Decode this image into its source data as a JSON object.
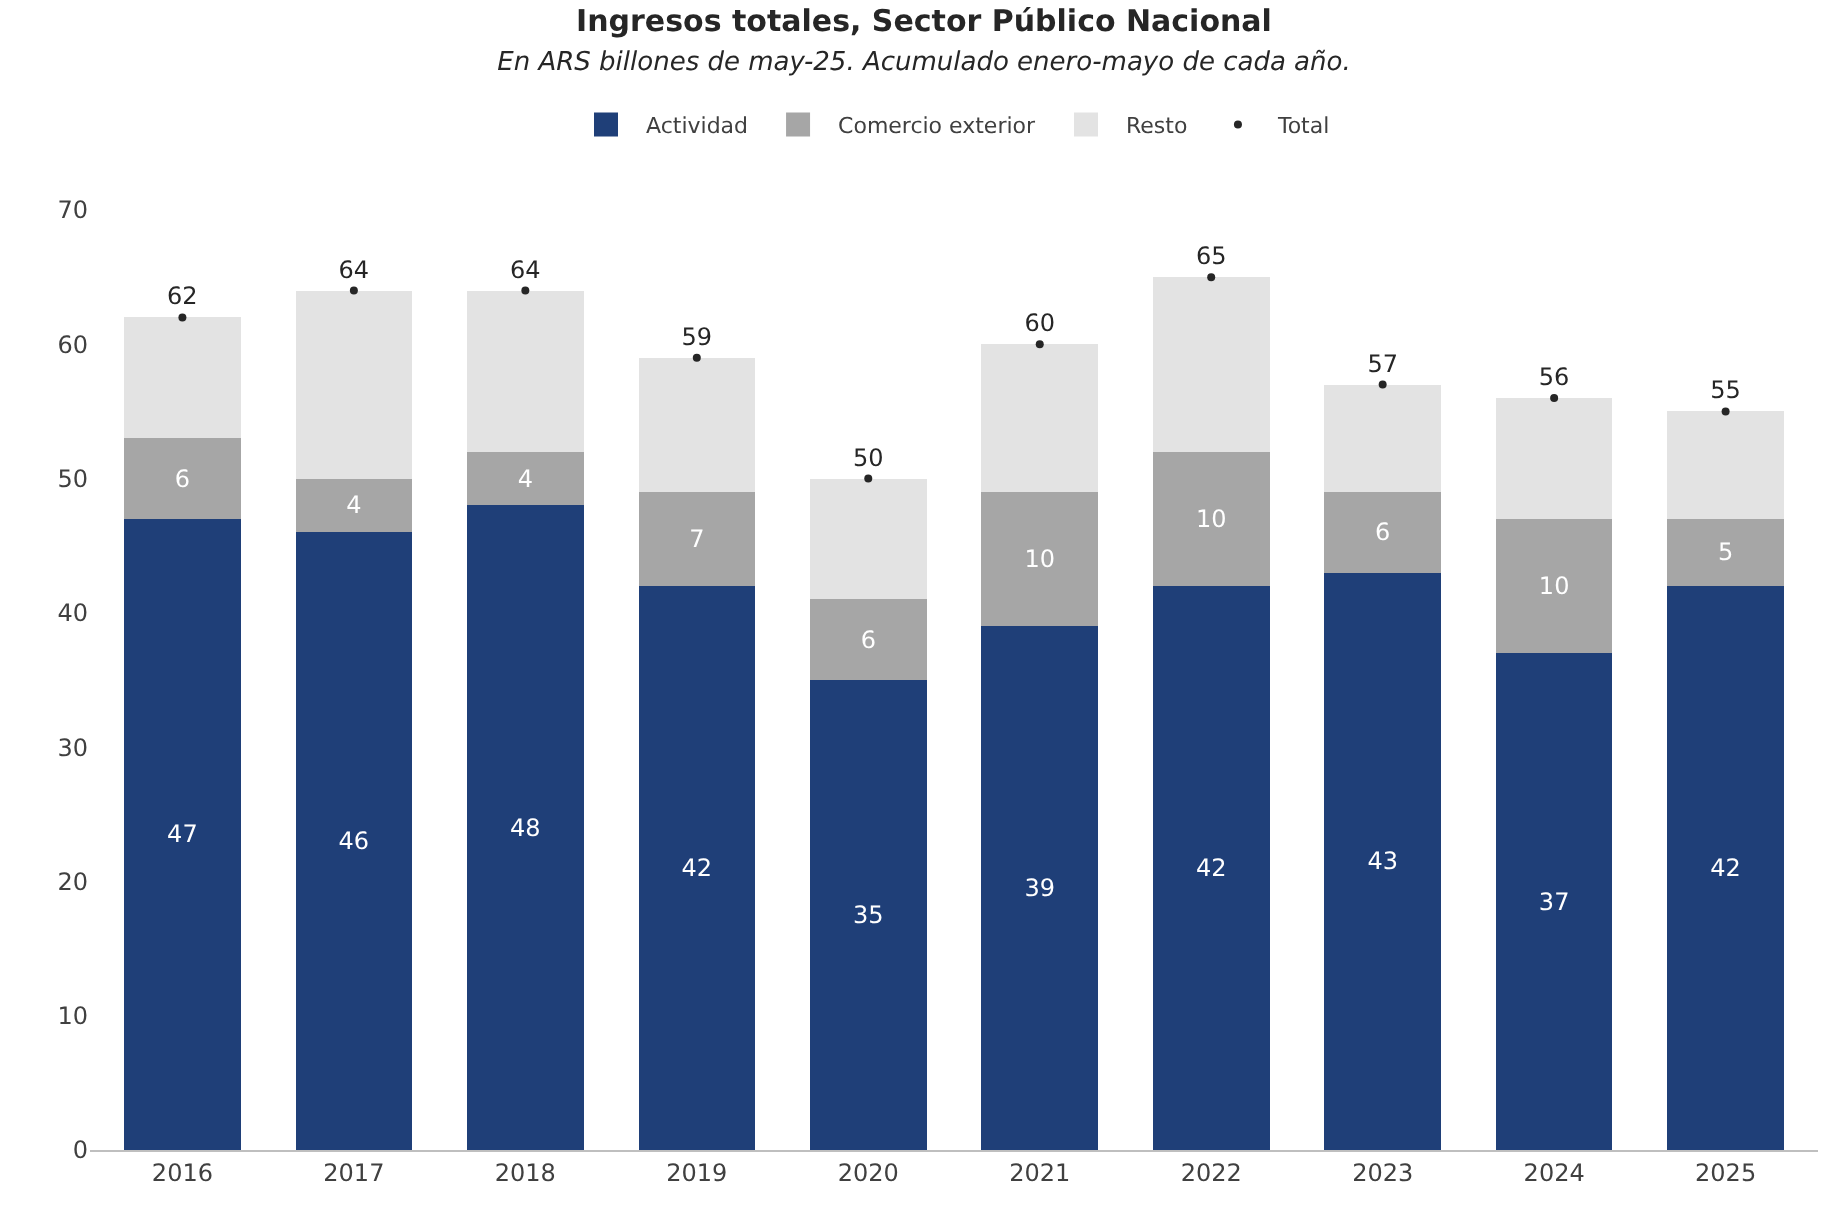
{
  "chart_data": {
    "type": "bar",
    "title": "Ingresos totales, Sector Público Nacional",
    "subtitle": "En ARS billones de may-25. Acumulado enero-mayo de cada año.",
    "categories": [
      "2016",
      "2017",
      "2018",
      "2019",
      "2020",
      "2021",
      "2022",
      "2023",
      "2024",
      "2025"
    ],
    "stacked": true,
    "ylim": [
      0,
      70
    ],
    "yticks": [
      0,
      10,
      20,
      30,
      40,
      50,
      60,
      70
    ],
    "grid": false,
    "legend": "top",
    "series": [
      {
        "name": "Actividad",
        "color": "#1f3f78",
        "values": [
          47,
          46,
          48,
          42,
          35,
          39,
          42,
          43,
          37,
          42
        ],
        "value_labels": [
          "47",
          "46",
          "48",
          "42",
          "35",
          "39",
          "42",
          "43",
          "37",
          "42"
        ]
      },
      {
        "name": "Comercio exterior",
        "color": "#a6a6a6",
        "values": [
          6,
          4,
          4,
          7,
          6,
          10,
          10,
          6,
          10,
          5
        ],
        "value_labels": [
          "6",
          "4",
          "4",
          "7",
          "6",
          "10",
          "10",
          "6",
          "10",
          "5"
        ]
      },
      {
        "name": "Resto",
        "color": "#e3e3e3",
        "values": [
          9,
          14,
          12,
          10,
          9,
          11,
          13,
          8,
          9,
          8
        ]
      },
      {
        "name": "Total",
        "type": "scatter",
        "marker": "circle",
        "color": "#262626",
        "values": [
          62,
          64,
          64,
          59,
          50,
          60,
          65,
          57,
          56,
          55
        ],
        "value_labels": [
          "62",
          "64",
          "64",
          "59",
          "50",
          "60",
          "65",
          "57",
          "56",
          "55"
        ]
      }
    ]
  }
}
